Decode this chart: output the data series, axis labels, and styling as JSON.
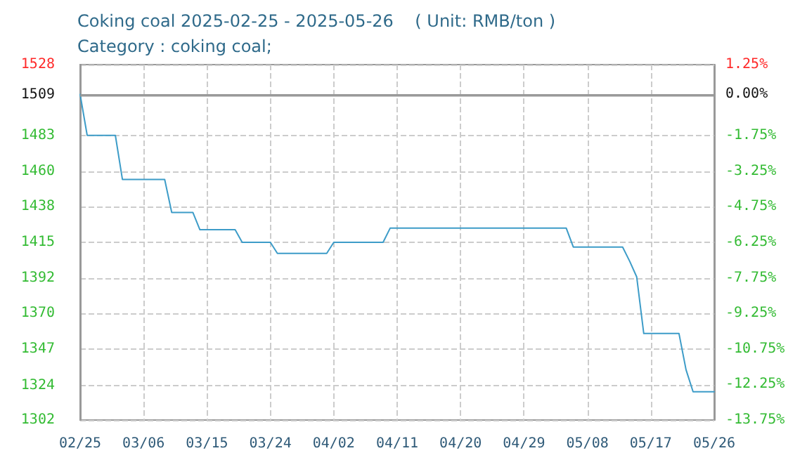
{
  "chart_data": {
    "type": "line",
    "title": "Coking coal 2025-02-25 - 2025-05-26    ( Unit: RMB/ton )",
    "subtitle": "Category : coking coal;",
    "x": [
      "2025-02-25",
      "2025-02-26",
      "2025-03-02",
      "2025-03-03",
      "2025-03-09",
      "2025-03-10",
      "2025-03-13",
      "2025-03-14",
      "2025-03-19",
      "2025-03-20",
      "2025-03-24",
      "2025-03-25",
      "2025-04-01",
      "2025-04-02",
      "2025-04-09",
      "2025-04-10",
      "2025-05-05",
      "2025-05-06",
      "2025-05-13",
      "2025-05-14",
      "2025-05-15",
      "2025-05-16",
      "2025-05-21",
      "2025-05-22",
      "2025-05-23",
      "2025-05-26"
    ],
    "series": [
      {
        "color": "#3d9cc8",
        "values": [
          1509,
          1483,
          1483,
          1455,
          1455,
          1434,
          1434,
          1423,
          1423,
          1415,
          1415,
          1408,
          1408,
          1415,
          1415,
          1424,
          1424,
          1412,
          1412,
          1403,
          1393,
          1357,
          1357,
          1334,
          1320,
          1320
        ]
      }
    ],
    "xlim": [
      "2025-02-25",
      "2025-05-26"
    ],
    "xticks": [
      {
        "value": "2025-02-25",
        "label": "02/25"
      },
      {
        "value": "2025-03-06",
        "label": "03/06"
      },
      {
        "value": "2025-03-15",
        "label": "03/15"
      },
      {
        "value": "2025-03-24",
        "label": "03/24"
      },
      {
        "value": "2025-04-02",
        "label": "04/02"
      },
      {
        "value": "2025-04-11",
        "label": "04/11"
      },
      {
        "value": "2025-04-20",
        "label": "04/20"
      },
      {
        "value": "2025-04-29",
        "label": "04/29"
      },
      {
        "value": "2025-05-08",
        "label": "05/08"
      },
      {
        "value": "2025-05-17",
        "label": "05/17"
      },
      {
        "value": "2025-05-26",
        "label": "05/26"
      }
    ],
    "ylim": [
      1302,
      1528
    ],
    "yticks": [
      1302,
      1324,
      1347,
      1370,
      1392,
      1415,
      1438,
      1460,
      1483,
      1509,
      1528
    ],
    "y2lim": [
      -13.75,
      1.25
    ],
    "y2ticks": [
      {
        "value": -13.75,
        "label": "-13.75%"
      },
      {
        "value": -12.25,
        "label": "-12.25%"
      },
      {
        "value": -10.75,
        "label": "-10.75%"
      },
      {
        "value": -9.25,
        "label": "-9.25%"
      },
      {
        "value": -7.75,
        "label": "-7.75%"
      },
      {
        "value": -6.25,
        "label": "-6.25%"
      },
      {
        "value": -4.75,
        "label": "-4.75%"
      },
      {
        "value": -3.25,
        "label": "-3.25%"
      },
      {
        "value": -1.75,
        "label": "-1.75%"
      },
      {
        "value": 0,
        "label": "0.00%"
      },
      {
        "value": 1.25,
        "label": "1.25%"
      }
    ],
    "ref_lines": [
      {
        "axis": "y",
        "value": 1509,
        "color": "#999999",
        "line_style": "solid"
      }
    ],
    "grid": true,
    "marker": "none",
    "line_style": "solid"
  }
}
